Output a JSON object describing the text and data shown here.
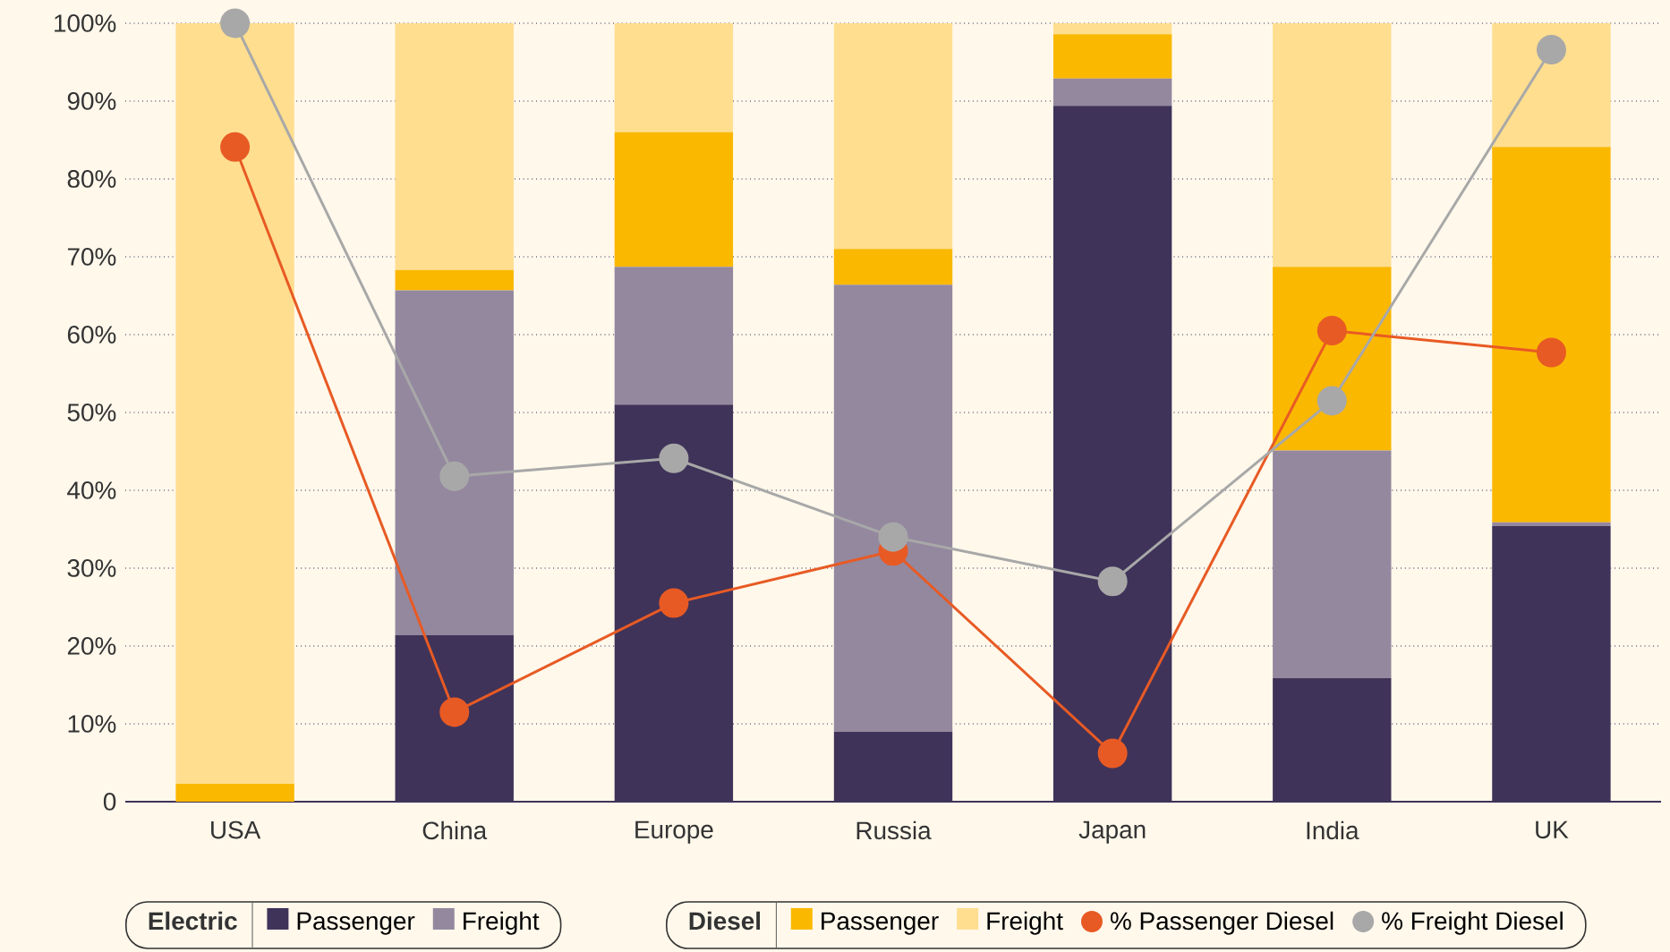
{
  "chart_data": {
    "type": "bar",
    "stacked": true,
    "categories": [
      "USA",
      "China",
      "Europe",
      "Russia",
      "Japan",
      "India",
      "UK"
    ],
    "series": [
      {
        "name": "Passenger",
        "color": "#3f3359",
        "values": [
          0,
          21.4,
          51.0,
          9.0,
          89.4,
          15.9,
          35.4
        ]
      },
      {
        "name": "Freight",
        "color": "#94889f",
        "values": [
          0,
          44.3,
          17.7,
          57.4,
          3.5,
          29.2,
          0.5
        ]
      },
      {
        "name": "Passenger",
        "color": "#fbb800",
        "values": [
          2.3,
          2.6,
          17.3,
          4.6,
          5.7,
          23.6,
          48.2
        ]
      },
      {
        "name": "Freight",
        "color": "#ffde90",
        "values": [
          97.7,
          31.7,
          14.0,
          29.0,
          1.4,
          31.3,
          15.9
        ]
      },
      {
        "name": "% Passenger Diesel",
        "type": "line",
        "color": "#e85a24",
        "values": [
          84.1,
          11.5,
          25.5,
          32.2,
          6.2,
          60.5,
          57.7
        ]
      },
      {
        "name": "% Freight Diesel",
        "type": "line",
        "color": "#a8a8a8",
        "values": [
          100,
          41.8,
          44.1,
          34.0,
          28.3,
          51.5,
          96.6
        ]
      }
    ],
    "ylim": [
      0,
      100
    ],
    "yticks": [
      0,
      {
        "value": 10,
        "label": "10%"
      },
      {
        "value": 20,
        "label": "20%"
      },
      {
        "value": 30,
        "label": "30%"
      },
      {
        "value": 40,
        "label": "40%"
      },
      {
        "value": 50,
        "label": "50%"
      },
      {
        "value": 60,
        "label": "60%"
      },
      {
        "value": 70,
        "label": "70%"
      },
      {
        "value": 80,
        "label": "80%"
      },
      {
        "value": 90,
        "label": "90%"
      },
      {
        "value": 100,
        "label": "100%"
      }
    ],
    "grid": "y",
    "legend": "bottom",
    "marker": "circle",
    "annotations": [
      "Electric",
      "Diesel"
    ]
  }
}
